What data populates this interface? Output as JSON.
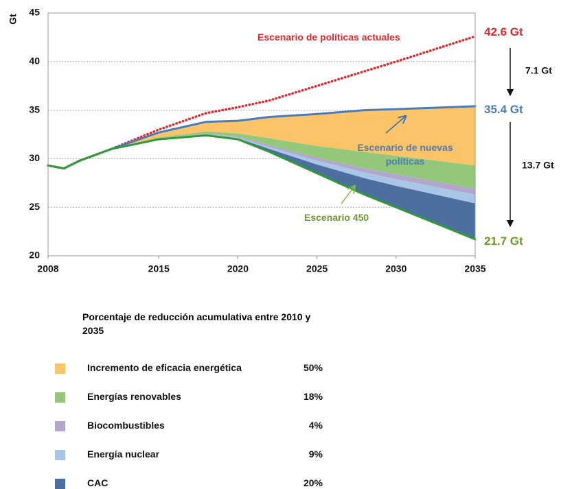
{
  "chart_data": {
    "type": "area",
    "y_label": "Gt",
    "x": [
      2008,
      2009,
      2010,
      2012,
      2015,
      2018,
      2020,
      2022,
      2025,
      2028,
      2030,
      2035
    ],
    "xlim": [
      2008,
      2035
    ],
    "xticks": [
      2008,
      2015,
      2020,
      2025,
      2030,
      2035
    ],
    "ylim": [
      20,
      45
    ],
    "yticks": [
      20,
      25,
      30,
      35,
      40,
      45
    ],
    "grid": true,
    "lines": [
      {
        "name": "Escenario de políticas actuales",
        "color": "#e3262b",
        "end_label": "42.6 Gt",
        "values": [
          29.3,
          29.0,
          29.8,
          31.0,
          33.0,
          34.7,
          35.3,
          36.0,
          37.5,
          39.0,
          40.0,
          42.6
        ]
      },
      {
        "name": "Escenario de nuevas políticas",
        "color": "#4a7cb8",
        "end_label": "35.4 Gt",
        "values": [
          29.3,
          29.0,
          29.8,
          31.0,
          32.7,
          33.8,
          33.9,
          34.3,
          34.6,
          35.0,
          35.1,
          35.4
        ]
      },
      {
        "name": "Escenario 450",
        "color": "#2f9a3a",
        "label_color": "#6a9a2a",
        "end_label": "21.7 Gt",
        "values": [
          29.3,
          29.0,
          29.8,
          31.0,
          32.0,
          32.4,
          32.0,
          30.7,
          28.5,
          26.3,
          25.0,
          21.7
        ]
      }
    ],
    "gap_labels": [
      "7.1 Gt",
      "13.7 Gt"
    ],
    "legend_title": "Porcentaje de reducción acumulativa entre 2010 y 2035",
    "series": [
      {
        "name": "Incremento de eficacia energética",
        "share_label": "50%",
        "color": "#fbc469",
        "values": [
          0,
          0,
          0,
          0,
          0.5,
          1.0,
          1.3,
          2.2,
          3.3,
          4.3,
          4.8,
          6.1
        ]
      },
      {
        "name": "Energías renovables",
        "share_label": "18%",
        "color": "#93c77a",
        "values": [
          0,
          0,
          0,
          0,
          0.1,
          0.2,
          0.3,
          0.7,
          1.2,
          1.7,
          1.9,
          2.4
        ]
      },
      {
        "name": "Biocombustibles",
        "share_label": "4%",
        "color": "#b3a6cc",
        "values": [
          0,
          0,
          0,
          0,
          0,
          0.05,
          0.1,
          0.2,
          0.3,
          0.4,
          0.5,
          0.6
        ]
      },
      {
        "name": "Energía nuclear",
        "share_label": "9%",
        "color": "#a9c6e6",
        "values": [
          0,
          0,
          0,
          0,
          0,
          0.05,
          0.1,
          0.2,
          0.4,
          0.6,
          0.7,
          0.9
        ]
      },
      {
        "name": "CAC",
        "share_label": "20%",
        "color": "#4c6fa0",
        "values": [
          0,
          0,
          0,
          0,
          0.1,
          0.1,
          0.1,
          0.3,
          0.9,
          1.7,
          2.2,
          3.7
        ]
      }
    ]
  }
}
